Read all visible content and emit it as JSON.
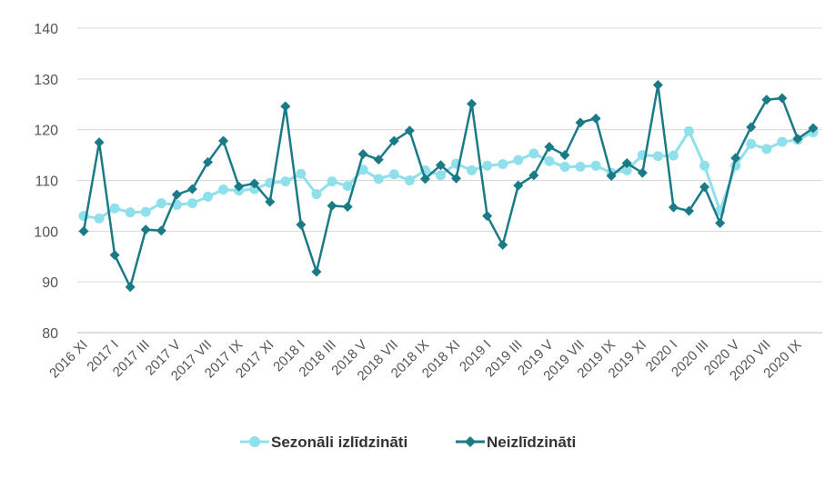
{
  "chart_data": {
    "type": "line",
    "title": "",
    "xlabel": "",
    "ylabel": "",
    "ylim": [
      80,
      140
    ],
    "yticks": [
      80,
      90,
      100,
      110,
      120,
      130,
      140
    ],
    "grid": true,
    "legend_position": "bottom-center",
    "x": [
      "2016 XI",
      "2016 XII",
      "2017 I",
      "2017 II",
      "2017 III",
      "2017 IV",
      "2017 V",
      "2017 VI",
      "2017 VII",
      "2017 VIII",
      "2017 IX",
      "2017 X",
      "2017 XI",
      "2017 XII",
      "2018 I",
      "2018 II",
      "2018 III",
      "2018 IV",
      "2018 V",
      "2018 VI",
      "2018 VII",
      "2018 VIII",
      "2018 IX",
      "2018 X",
      "2018 XI",
      "2018 XII",
      "2019 I",
      "2019 II",
      "2019 III",
      "2019 IV",
      "2019 V",
      "2019 VI",
      "2019 VII",
      "2019 VIII",
      "2019 IX",
      "2019 X",
      "2019 XI",
      "2019 XII",
      "2020 I",
      "2020 II",
      "2020 III",
      "2020 IV",
      "2020 V",
      "2020 VI",
      "2020 VII",
      "2020 VIII",
      "2020 IX",
      "2020 X"
    ],
    "tick_labels": [
      "2016 XI",
      "2017 I",
      "2017 III",
      "2017 V",
      "2017 VII",
      "2017 IX",
      "2017 XI",
      "2018 I",
      "2018 III",
      "2018 V",
      "2018 VII",
      "2018 IX",
      "2018 XI",
      "2019 I",
      "2019 III",
      "2019 V",
      "2019 VII",
      "2019 IX",
      "2019 XI",
      "2020 I",
      "2020 III",
      "2020 V",
      "2020 VII",
      "2020 IX"
    ],
    "series": [
      {
        "name": "Sezonāli izlīdzināti",
        "color": "#8fe0ea",
        "marker": "circle",
        "values": [
          103.0,
          102.5,
          104.5,
          103.7,
          103.8,
          105.5,
          105.2,
          105.5,
          106.8,
          108.2,
          108.0,
          108.3,
          109.5,
          109.8,
          111.3,
          107.3,
          109.8,
          108.9,
          112.1,
          110.3,
          111.2,
          110.0,
          112.0,
          111.0,
          113.3,
          112.0,
          112.9,
          113.2,
          114.0,
          115.3,
          113.8,
          112.7,
          112.7,
          112.9,
          111.5,
          112.0,
          115.0,
          114.8,
          114.9,
          119.7,
          112.9,
          104.0,
          112.9,
          117.2,
          116.2,
          117.6,
          118.0,
          119.5
        ]
      },
      {
        "name": "Neizlīdzināti",
        "color": "#1a7a86",
        "marker": "diamond",
        "values": [
          100.0,
          117.5,
          95.3,
          89.0,
          100.3,
          100.1,
          107.2,
          108.3,
          113.6,
          117.8,
          108.8,
          109.4,
          105.8,
          124.6,
          101.3,
          92.0,
          105.0,
          104.8,
          115.2,
          114.1,
          117.8,
          119.8,
          110.3,
          113.0,
          110.4,
          125.1,
          103.0,
          97.3,
          109.0,
          111.0,
          116.6,
          115.0,
          121.4,
          122.2,
          110.9,
          113.4,
          111.5,
          128.8,
          104.7,
          104.0,
          108.7,
          101.6,
          114.4,
          120.5,
          125.9,
          126.2,
          118.2,
          120.3
        ]
      }
    ]
  }
}
